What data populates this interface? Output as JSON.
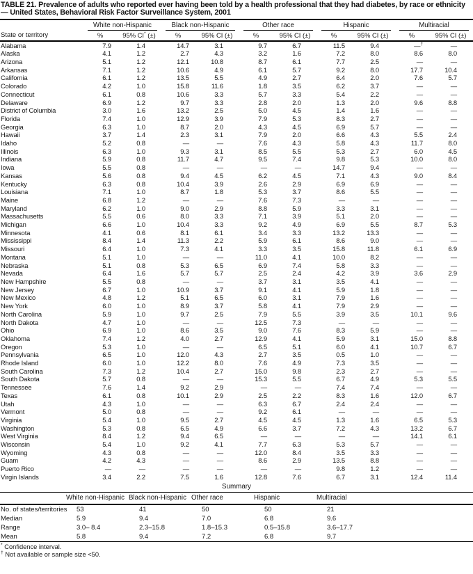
{
  "title": "TABLE 21. Prevalence of adults who reported ever having been told by a health professional that they had diabetes, by race or ethnicity — United States, Behavioral Risk Factor Surveillance System, 2001",
  "table": {
    "row_header": "State or territory",
    "groups": [
      {
        "label": "White non-Hispanic",
        "pct": "%",
        "ci": "95% CI* (±)"
      },
      {
        "label": "Black non-Hispanic",
        "pct": "%",
        "ci": "95% CI (±)"
      },
      {
        "label": "Other race",
        "pct": "%",
        "ci": "95% CI (±)"
      },
      {
        "label": "Hispanic",
        "pct": "%",
        "ci": "95% CI (±)"
      },
      {
        "label": "Multiracial",
        "pct": "%",
        "ci": "95% CI (±)"
      }
    ],
    "rows": [
      {
        "state": "Alabama",
        "values": [
          "7.9",
          "1.4",
          "14.7",
          "3.1",
          "9.7",
          "6.7",
          "11.5",
          "9.4",
          "—†",
          "—"
        ]
      },
      {
        "state": "Alaska",
        "values": [
          "4.1",
          "1.2",
          "2.7",
          "4.3",
          "3.2",
          "1.6",
          "7.2",
          "8.0",
          "8.6",
          "8.0"
        ]
      },
      {
        "state": "Arizona",
        "values": [
          "5.1",
          "1.2",
          "12.1",
          "10.8",
          "8.7",
          "6.1",
          "7.7",
          "2.5",
          "—",
          "—"
        ]
      },
      {
        "state": "Arkansas",
        "values": [
          "7.1",
          "1.2",
          "10.6",
          "4.9",
          "6.1",
          "5.7",
          "9.2",
          "8.0",
          "17.7",
          "10.4"
        ]
      },
      {
        "state": "California",
        "values": [
          "6.1",
          "1.2",
          "13.5",
          "5.5",
          "4.9",
          "2.7",
          "6.4",
          "2.0",
          "7.6",
          "5.7"
        ]
      },
      {
        "state": "Colorado",
        "values": [
          "4.2",
          "1.0",
          "15.8",
          "11.6",
          "1.8",
          "3.5",
          "6.2",
          "3.7",
          "—",
          "—"
        ]
      },
      {
        "state": "Connecticut",
        "values": [
          "6.1",
          "0.8",
          "10.6",
          "3.3",
          "5.7",
          "3.3",
          "5.4",
          "2.2",
          "—",
          "—"
        ]
      },
      {
        "state": "Delaware",
        "values": [
          "6.9",
          "1.2",
          "9.7",
          "3.3",
          "2.8",
          "2.0",
          "1.3",
          "2.0",
          "9.6",
          "8.8"
        ]
      },
      {
        "state": "District of Columbia",
        "values": [
          "3.0",
          "1.6",
          "13.2",
          "2.5",
          "5.0",
          "4.5",
          "1.4",
          "1.6",
          "—",
          "—"
        ]
      },
      {
        "state": "Florida",
        "values": [
          "7.4",
          "1.0",
          "12.9",
          "3.9",
          "7.9",
          "5.3",
          "8.3",
          "2.7",
          "—",
          "—"
        ]
      },
      {
        "state": "Georgia",
        "values": [
          "6.3",
          "1.0",
          "8.7",
          "2.0",
          "4.3",
          "4.5",
          "6.9",
          "5.7",
          "—",
          "—"
        ]
      },
      {
        "state": "Hawaii",
        "values": [
          "3.7",
          "1.4",
          "2.3",
          "3.1",
          "7.9",
          "2.0",
          "6.6",
          "4.3",
          "5.5",
          "2.4"
        ]
      },
      {
        "state": "Idaho",
        "values": [
          "5.2",
          "0.8",
          "—",
          "—",
          "7.6",
          "4.3",
          "5.8",
          "4.3",
          "11.7",
          "8.0"
        ]
      },
      {
        "state": "Illinois",
        "values": [
          "6.3",
          "1.0",
          "9.3",
          "3.1",
          "8.5",
          "5.5",
          "5.3",
          "2.7",
          "6.0",
          "4.5"
        ]
      },
      {
        "state": "Indiana",
        "values": [
          "5.9",
          "0.8",
          "11.7",
          "4.7",
          "9.5",
          "7.4",
          "9.8",
          "5.3",
          "10.0",
          "8.0"
        ]
      },
      {
        "state": "Iowa",
        "values": [
          "5.5",
          "0.8",
          "—",
          "—",
          "—",
          "—",
          "14.7",
          "9.4",
          "—",
          "—"
        ]
      },
      {
        "state": "Kansas",
        "values": [
          "5.6",
          "0.8",
          "9.4",
          "4.5",
          "6.2",
          "4.5",
          "7.1",
          "4.3",
          "9.0",
          "8.4"
        ]
      },
      {
        "state": "Kentucky",
        "values": [
          "6.3",
          "0.8",
          "10.4",
          "3.9",
          "2.6",
          "2.9",
          "6.9",
          "6.9",
          "—",
          "—"
        ]
      },
      {
        "state": "Louisiana",
        "values": [
          "7.1",
          "1.0",
          "8.7",
          "1.8",
          "5.3",
          "3.7",
          "8.6",
          "5.5",
          "—",
          "—"
        ]
      },
      {
        "state": "Maine",
        "values": [
          "6.8",
          "1.2",
          "—",
          "—",
          "7.6",
          "7.3",
          "—",
          "—",
          "—",
          "—"
        ]
      },
      {
        "state": "Maryland",
        "values": [
          "6.2",
          "1.0",
          "9.0",
          "2.9",
          "8.8",
          "5.9",
          "3.3",
          "3.1",
          "—",
          "—"
        ]
      },
      {
        "state": "Massachusetts",
        "values": [
          "5.5",
          "0.6",
          "8.0",
          "3.3",
          "7.1",
          "3.9",
          "5.1",
          "2.0",
          "—",
          "—"
        ]
      },
      {
        "state": "Michigan",
        "values": [
          "6.6",
          "1.0",
          "10.4",
          "3.3",
          "9.2",
          "4.9",
          "6.9",
          "5.5",
          "8.7",
          "5.3"
        ]
      },
      {
        "state": "Minnesota",
        "values": [
          "4.1",
          "0.6",
          "8.1",
          "6.1",
          "3.4",
          "3.3",
          "13.2",
          "13.3",
          "—",
          "—"
        ]
      },
      {
        "state": "Mississippi",
        "values": [
          "8.4",
          "1.4",
          "11.3",
          "2.2",
          "5.9",
          "6.1",
          "8.6",
          "9.0",
          "—",
          "—"
        ]
      },
      {
        "state": "Missouri",
        "values": [
          "6.4",
          "1.0",
          "7.3",
          "4.1",
          "3.3",
          "3.5",
          "15.8",
          "11.8",
          "6.1",
          "6.9"
        ]
      },
      {
        "state": "Montana",
        "values": [
          "5.1",
          "1.0",
          "—",
          "—",
          "11.0",
          "4.1",
          "10.0",
          "8.2",
          "—",
          "—"
        ]
      },
      {
        "state": "Nebraska",
        "values": [
          "5.1",
          "0.8",
          "5.3",
          "6.5",
          "6.9",
          "7.4",
          "5.8",
          "3.3",
          "—",
          "—"
        ]
      },
      {
        "state": "Nevada",
        "values": [
          "6.4",
          "1.6",
          "5.7",
          "5.7",
          "2.5",
          "2.4",
          "4.2",
          "3.9",
          "3.6",
          "2.9"
        ]
      },
      {
        "state": "New Hampshire",
        "values": [
          "5.5",
          "0.8",
          "—",
          "—",
          "3.7",
          "3.1",
          "3.5",
          "4.1",
          "—",
          "—"
        ]
      },
      {
        "state": "New Jersey",
        "values": [
          "6.7",
          "1.0",
          "10.9",
          "3.7",
          "9.1",
          "4.1",
          "5.9",
          "1.8",
          "—",
          "—"
        ]
      },
      {
        "state": "New Mexico",
        "values": [
          "4.8",
          "1.2",
          "5.1",
          "6.5",
          "6.0",
          "3.1",
          "7.9",
          "1.6",
          "—",
          "—"
        ]
      },
      {
        "state": "New York",
        "values": [
          "6.0",
          "1.0",
          "8.9",
          "3.7",
          "5.8",
          "4.1",
          "7.9",
          "2.9",
          "—",
          "—"
        ]
      },
      {
        "state": "North Carolina",
        "values": [
          "5.9",
          "1.0",
          "9.7",
          "2.5",
          "7.9",
          "5.5",
          "3.9",
          "3.5",
          "10.1",
          "9.6"
        ]
      },
      {
        "state": "North Dakota",
        "values": [
          "4.7",
          "1.0",
          "—",
          "—",
          "12.5",
          "7.3",
          "—",
          "—",
          "—",
          "—"
        ]
      },
      {
        "state": "Ohio",
        "values": [
          "6.9",
          "1.0",
          "8.6",
          "3.5",
          "9.0",
          "7.6",
          "8.3",
          "5.9",
          "—",
          "—"
        ]
      },
      {
        "state": "Oklahoma",
        "values": [
          "7.4",
          "1.2",
          "4.0",
          "2.7",
          "12.9",
          "4.1",
          "5.9",
          "3.1",
          "15.0",
          "8.8"
        ]
      },
      {
        "state": "Oregon",
        "values": [
          "5.3",
          "1.0",
          "—",
          "—",
          "6.5",
          "5.1",
          "6.0",
          "4.1",
          "10.7",
          "6.7"
        ]
      },
      {
        "state": "Pennsylvania",
        "values": [
          "6.5",
          "1.0",
          "12.0",
          "4.3",
          "2.7",
          "3.5",
          "0.5",
          "1.0",
          "—",
          "—"
        ]
      },
      {
        "state": "Rhode Island",
        "values": [
          "6.0",
          "1.0",
          "12.2",
          "8.0",
          "7.6",
          "4.9",
          "7.3",
          "3.5",
          "—",
          "—"
        ]
      },
      {
        "state": "South Carolina",
        "values": [
          "7.3",
          "1.2",
          "10.4",
          "2.7",
          "15.0",
          "9.8",
          "2.3",
          "2.7",
          "—",
          "—"
        ]
      },
      {
        "state": "South Dakota",
        "values": [
          "5.7",
          "0.8",
          "—",
          "—",
          "15.3",
          "5.5",
          "6.7",
          "4.9",
          "5.3",
          "5.5"
        ]
      },
      {
        "state": "Tennessee",
        "values": [
          "7.6",
          "1.4",
          "9.2",
          "2.9",
          "—",
          "—",
          "7.4",
          "7.4",
          "—",
          "—"
        ]
      },
      {
        "state": "Texas",
        "values": [
          "6.1",
          "0.8",
          "10.1",
          "2.9",
          "2.5",
          "2.2",
          "8.3",
          "1.6",
          "12.0",
          "6.7"
        ]
      },
      {
        "state": "Utah",
        "values": [
          "4.3",
          "1.0",
          "—",
          "—",
          "6.3",
          "6.7",
          "2.4",
          "2.4",
          "—",
          "—"
        ]
      },
      {
        "state": "Vermont",
        "values": [
          "5.0",
          "0.8",
          "—",
          "—",
          "9.2",
          "6.1",
          "—",
          "—",
          "—",
          "—"
        ]
      },
      {
        "state": "Virginia",
        "values": [
          "5.4",
          "1.0",
          "9.5",
          "2.7",
          "4.5",
          "4.5",
          "1.3",
          "1.6",
          "6.5",
          "5.3"
        ]
      },
      {
        "state": "Washington",
        "values": [
          "5.3",
          "0.8",
          "6.5",
          "4.9",
          "6.6",
          "3.7",
          "7.2",
          "4.3",
          "13.2",
          "6.7"
        ]
      },
      {
        "state": "West Virginia",
        "values": [
          "8.4",
          "1.2",
          "9.4",
          "6.5",
          "—",
          "—",
          "—",
          "—",
          "14.1",
          "6.1"
        ]
      },
      {
        "state": "Wisconsin",
        "values": [
          "5.4",
          "1.0",
          "9.2",
          "4.1",
          "7.7",
          "6.3",
          "5.3",
          "5.7",
          "—",
          "—"
        ]
      },
      {
        "state": "Wyoming",
        "values": [
          "4.3",
          "0.8",
          "—",
          "—",
          "12.0",
          "8.4",
          "3.5",
          "3.3",
          "—",
          "—"
        ]
      },
      {
        "state": "Guam",
        "values": [
          "4.2",
          "4.3",
          "—",
          "—",
          "8.6",
          "2.9",
          "13.5",
          "8.8",
          "—",
          "—"
        ]
      },
      {
        "state": "Puerto Rico",
        "values": [
          "—",
          "—",
          "—",
          "—",
          "—",
          "—",
          "9.8",
          "1.2",
          "—",
          "—"
        ]
      },
      {
        "state": "Virgin Islands",
        "values": [
          "3.4",
          "2.2",
          "7.5",
          "1.6",
          "12.8",
          "7.6",
          "6.7",
          "3.1",
          "12.4",
          "11.4"
        ]
      }
    ]
  },
  "summary": {
    "heading": "Summary",
    "columns": [
      "White non-Hispanic",
      "Black non-Hispanic",
      "Other race",
      "Hispanic",
      "Multiracial"
    ],
    "rows": [
      {
        "label": "No. of states/territories",
        "values": [
          "53",
          "41",
          "50",
          "50",
          "21"
        ]
      },
      {
        "label": "Median",
        "values": [
          "5.9",
          "9.4",
          "7.0",
          "6.8",
          "9.6"
        ]
      },
      {
        "label": "Range",
        "values": [
          "3.0– 8.4",
          "2.3–15.8",
          "1.8–15.3",
          "0.5–15.8",
          "3.6–17.7"
        ]
      },
      {
        "label": "Mean",
        "values": [
          "5.8",
          "9.4",
          "7.2",
          "6.8",
          "9.7"
        ]
      }
    ]
  },
  "footnotes": [
    {
      "marker": "*",
      "text": " Confidence interval."
    },
    {
      "marker": "†",
      "text": " Not available or sample size <50."
    }
  ]
}
